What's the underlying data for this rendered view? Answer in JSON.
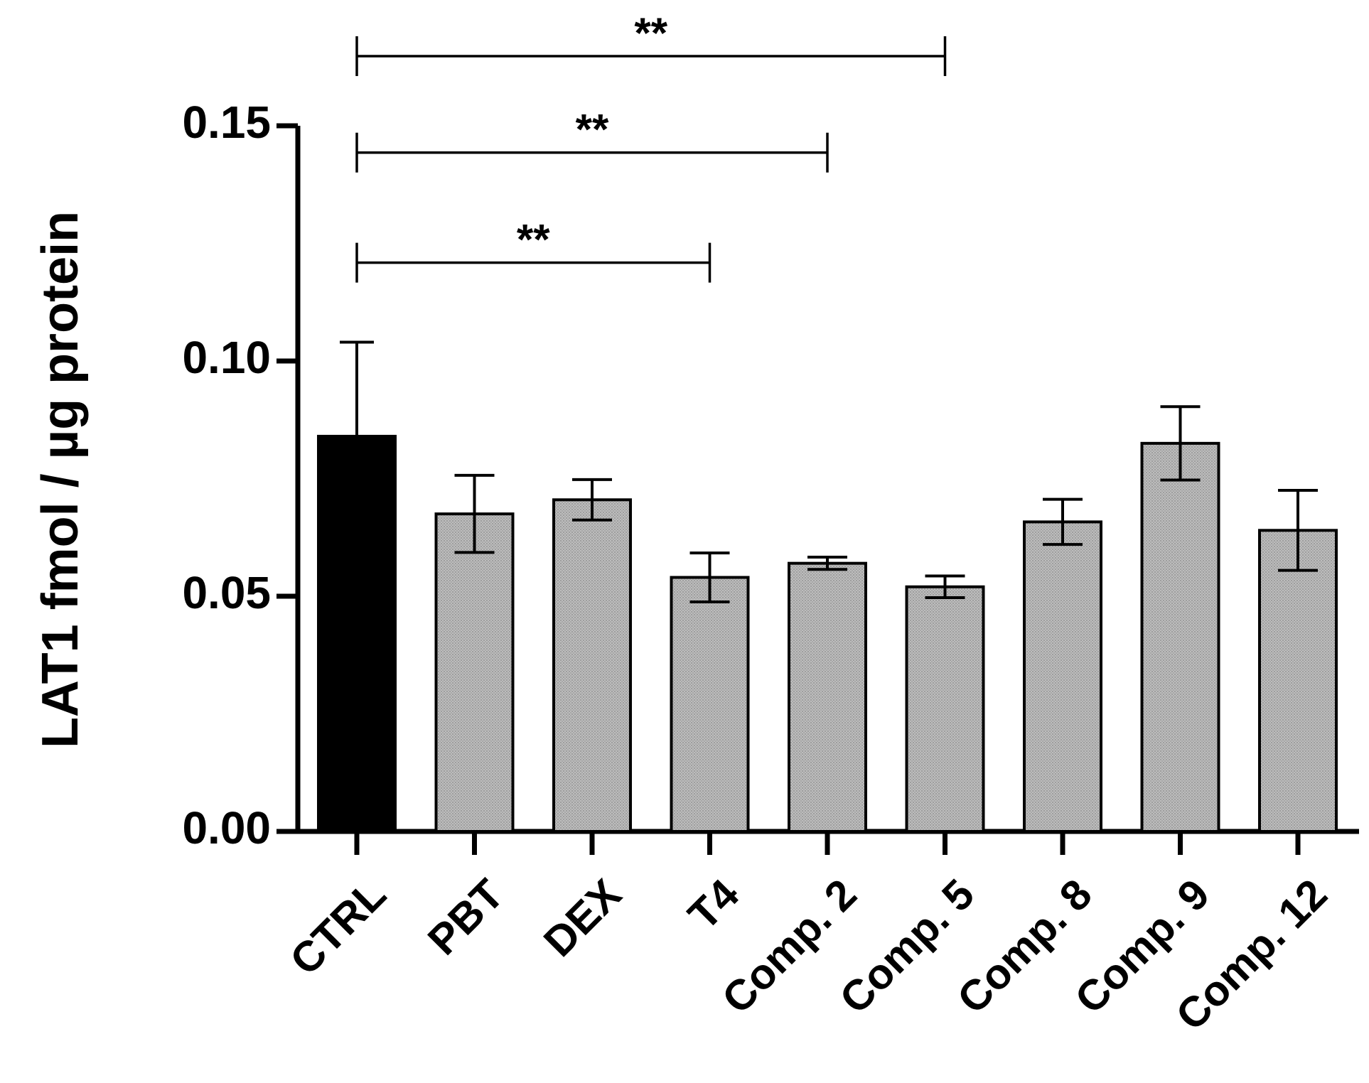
{
  "chart_data": {
    "type": "bar",
    "title": "",
    "xlabel": "",
    "ylabel": "LAT1 fmol / µg protein",
    "ylim": [
      0,
      0.15
    ],
    "yticks": [
      "0.00",
      "0.05",
      "0.10",
      "0.15"
    ],
    "ytick_values": [
      0,
      0.05,
      0.1,
      0.15
    ],
    "categories": [
      "CTRL",
      "PBT",
      "DEX",
      "T4",
      "Comp. 2",
      "Comp. 5",
      "Comp. 8",
      "Comp. 9",
      "Comp. 12"
    ],
    "values": [
      0.084,
      0.0675,
      0.0705,
      0.054,
      0.057,
      0.052,
      0.0658,
      0.0825,
      0.064
    ],
    "errors": [
      0.02,
      0.0082,
      0.0043,
      0.0052,
      0.0013,
      0.0023,
      0.0048,
      0.0078,
      0.0085
    ],
    "grid": false,
    "colors": {
      "control": "#000000",
      "treatment": "#b4b4b4",
      "axis": "#000000"
    },
    "significance": [
      {
        "from": "CTRL",
        "to": "Comp. 5",
        "label": "**",
        "level": 0.1648
      },
      {
        "from": "CTRL",
        "to": "Comp. 2",
        "label": "**",
        "level": 0.1443
      },
      {
        "from": "CTRL",
        "to": "T4",
        "label": "**",
        "level": 0.1209
      }
    ]
  }
}
